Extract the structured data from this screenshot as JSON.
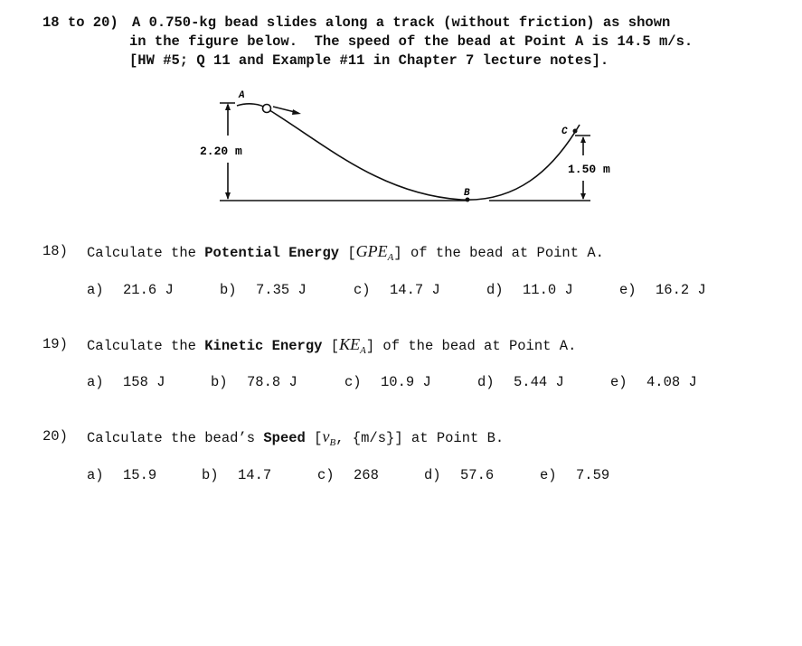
{
  "header": {
    "number": "18 to 20)",
    "lines": [
      "A 0.750-kg bead slides along a track (without friction) as shown",
      "in the figure below.  The speed of the bead at Point A is 14.5 m/s.",
      "[HW #5; Q 11 and Example #11 in Chapter 7 lecture notes]."
    ]
  },
  "figure": {
    "point_a": "A",
    "point_b": "B",
    "point_c": "C",
    "height_a": "2.20 m",
    "height_c": "1.50 m"
  },
  "questions": [
    {
      "number": "18)",
      "prompt": [
        {
          "text": "Calculate the ",
          "style": "normal"
        },
        {
          "text": "Potential Energy",
          "style": "bold"
        },
        {
          "text": " [",
          "style": "normal"
        },
        {
          "text": "GPE",
          "style": "italic"
        },
        {
          "text": "A",
          "style": "sub"
        },
        {
          "text": "] of the bead at Point A.",
          "style": "normal"
        }
      ],
      "options": [
        {
          "letter": "a)",
          "text": "21.6 J"
        },
        {
          "letter": "b)",
          "text": "7.35 J"
        },
        {
          "letter": "c)",
          "text": "14.7 J"
        },
        {
          "letter": "d)",
          "text": "11.0 J"
        },
        {
          "letter": "e)",
          "text": "16.2 J"
        }
      ]
    },
    {
      "number": "19)",
      "prompt": [
        {
          "text": "Calculate the ",
          "style": "normal"
        },
        {
          "text": "Kinetic Energy",
          "style": "bold"
        },
        {
          "text": " [",
          "style": "normal"
        },
        {
          "text": "KE",
          "style": "italic"
        },
        {
          "text": "A",
          "style": "sub"
        },
        {
          "text": "] of the bead at Point A.",
          "style": "normal"
        }
      ],
      "options": [
        {
          "letter": "a)",
          "text": "158 J"
        },
        {
          "letter": "b)",
          "text": "78.8 J"
        },
        {
          "letter": "c)",
          "text": "10.9 J"
        },
        {
          "letter": "d)",
          "text": "5.44 J"
        },
        {
          "letter": "e)",
          "text": "4.08 J"
        }
      ]
    },
    {
      "number": "20)",
      "prompt": [
        {
          "text": "Calculate the bead’s ",
          "style": "normal"
        },
        {
          "text": "Speed",
          "style": "bold"
        },
        {
          "text": " [",
          "style": "normal"
        },
        {
          "text": "v",
          "style": "italic"
        },
        {
          "text": "B",
          "style": "sub"
        },
        {
          "text": ", {m/s}] at Point B.",
          "style": "normal"
        }
      ],
      "options": [
        {
          "letter": "a)",
          "text": "15.9"
        },
        {
          "letter": "b)",
          "text": "14.7"
        },
        {
          "letter": "c)",
          "text": "268"
        },
        {
          "letter": "d)",
          "text": "57.6"
        },
        {
          "letter": "e)",
          "text": "7.59"
        }
      ]
    }
  ]
}
